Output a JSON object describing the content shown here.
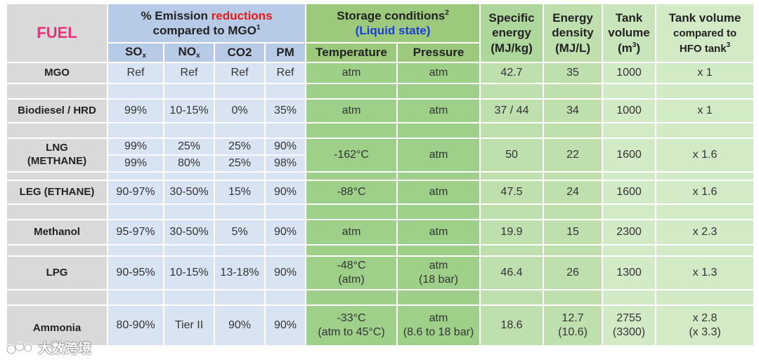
{
  "header": {
    "fuel": "FUEL",
    "emission_prefix": "% Emission",
    "emission_highlight": "reductions",
    "emission_suffix": "compared to MGO",
    "emission_note": "1",
    "storage_title": "Storage conditions",
    "storage_note": "2",
    "storage_subtitle": "(Liquid state)",
    "specific_energy": "Specific energy (MJ/kg)",
    "specific_energy_l1": "Specific",
    "specific_energy_l2": "energy",
    "specific_energy_l3": "(MJ/kg)",
    "energy_density_l1": "Energy",
    "energy_density_l2": "density",
    "energy_density_l3": "(MJ/L)",
    "tank_volume_l1": "Tank",
    "tank_volume_l2": "volume",
    "tank_volume_l3": "(m",
    "tank_volume_unit_sup": "3",
    "tank_volume_l3_end": ")",
    "tank_compare_l1": "Tank volume",
    "tank_compare_l2": "compared to",
    "tank_compare_l3": "HFO tank",
    "tank_compare_note": "3",
    "so_main": "SO",
    "so_sub": "x",
    "no_main": "NO",
    "no_sub": "x",
    "co2": "CO2",
    "pm": "PM",
    "temperature": "Temperature",
    "pressure": "Pressure"
  },
  "rows": {
    "mgo": {
      "fuel": "MGO",
      "so": "Ref",
      "no": "Ref",
      "co2": "Ref",
      "pm": "Ref",
      "temp": "atm",
      "pressure": "atm",
      "se": "42.7",
      "ed": "35",
      "tv": "1000",
      "tc": "x 1"
    },
    "biodiesel": {
      "fuel": "Biodiesel / HRD",
      "so": "99%",
      "no": "10-15%",
      "co2": "0%",
      "pm": "35%",
      "temp": "atm",
      "pressure": "atm",
      "se": "37 / 44",
      "ed": "34",
      "tv": "1000",
      "tc": "x 1"
    },
    "lng": {
      "fuel_l1": "LNG",
      "fuel_l2": "(METHANE)",
      "so_1": "99%",
      "no_1": "25%",
      "co2_1": "25%",
      "pm_1": "90%",
      "so_2": "99%",
      "no_2": "80%",
      "co2_2": "25%",
      "pm_2": "98%",
      "temp": "-162°C",
      "pressure": "atm",
      "se": "50",
      "ed": "22",
      "tv": "1600",
      "tc": "x 1.6"
    },
    "leg": {
      "fuel": "LEG (ETHANE)",
      "so": "90-97%",
      "no": "30-50%",
      "co2": "15%",
      "pm": "90%",
      "temp": "-88°C",
      "pressure": "atm",
      "se": "47.5",
      "ed": "24",
      "tv": "1600",
      "tc": "x 1.6"
    },
    "methanol": {
      "fuel": "Methanol",
      "so": "95-97%",
      "no": "30-50%",
      "co2": "5%",
      "pm": "90%",
      "temp": "atm",
      "pressure": "atm",
      "se": "19.9",
      "ed": "15",
      "tv": "2300",
      "tc": "x 2.3"
    },
    "lpg": {
      "fuel": "LPG",
      "so": "90-95%",
      "no": "10-15%",
      "co2": "13-18%",
      "pm": "90%",
      "temp_l1": "-48°C",
      "temp_l2": "(atm)",
      "pressure_l1": "atm",
      "pressure_l2": "(18 bar)",
      "se": "46.4",
      "ed": "26",
      "tv": "1300",
      "tc": "x 1.3"
    },
    "ammonia": {
      "fuel": "Ammonia",
      "so": "80-90%",
      "no": "Tier II",
      "co2": "90%",
      "pm": "90%",
      "temp_l1": "-33°C",
      "temp_l2": "(atm to 45°C)",
      "pressure_l1": "atm",
      "pressure_l2": "(8.6 to 18 bar)",
      "se": "18.6",
      "ed_l1": "12.7",
      "ed_l2": "(10.6)",
      "tv_l1": "2755",
      "tv_l2": "(3300)",
      "tc_l1": "x 2.8",
      "tc_l2": "(x 3.3)"
    }
  },
  "watermark": {
    "text": "大数跨境"
  }
}
